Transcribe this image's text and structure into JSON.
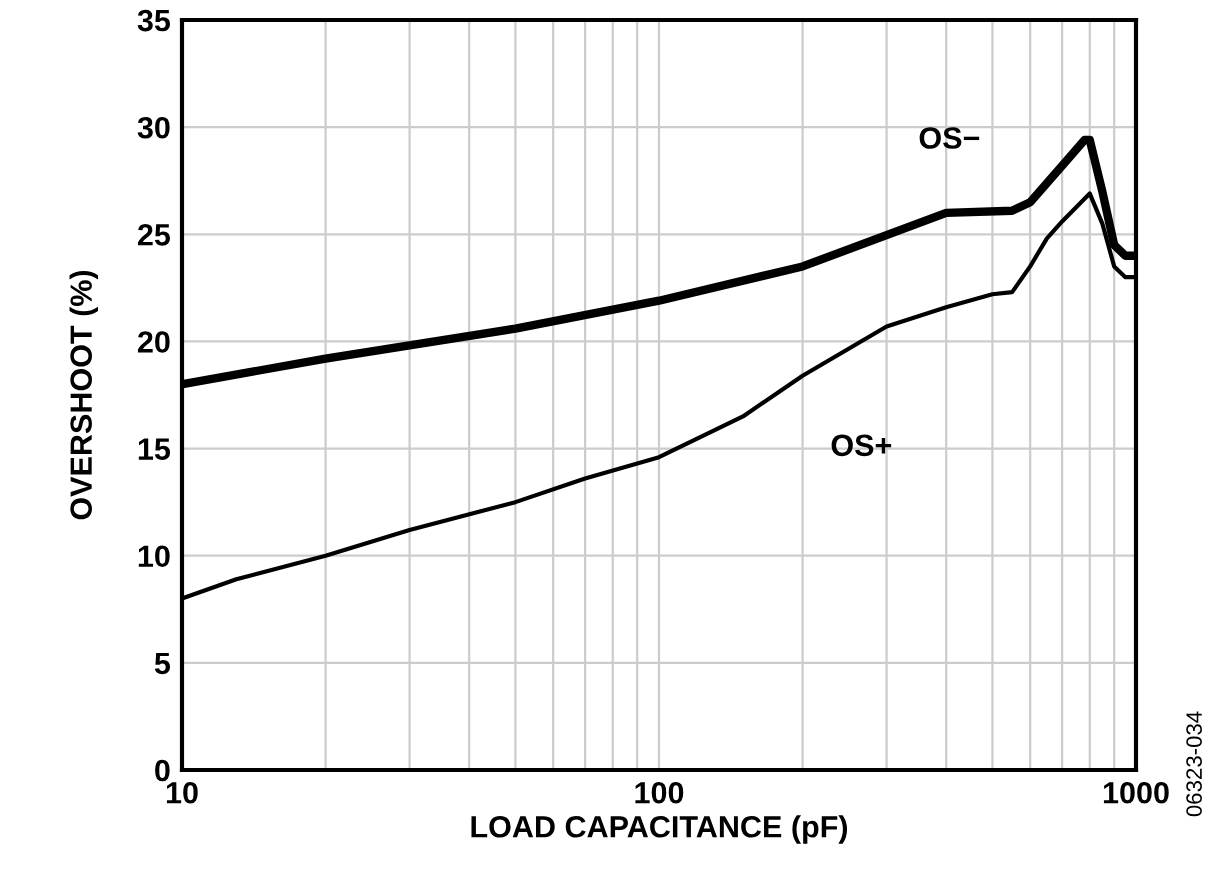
{
  "chart_data": {
    "type": "line",
    "xlabel": "LOAD CAPACITANCE (pF)",
    "ylabel": "OVERSHOOT (%)",
    "log": "x",
    "xlim": [
      10,
      1000
    ],
    "xticks": [
      10,
      100,
      1000
    ],
    "ylim": [
      0,
      35
    ],
    "yticks": [
      0,
      5,
      10,
      15,
      20,
      25,
      30,
      35
    ],
    "grid": true,
    "legend": false,
    "line_style": "solid",
    "annotations": [
      "06323-034"
    ],
    "series": [
      {
        "name": "OS−",
        "color": "#000000",
        "x": [
          10,
          20,
          50,
          100,
          200,
          400,
          550,
          600,
          700,
          780,
          800,
          850,
          900,
          950,
          1000
        ],
        "values": [
          18.0,
          19.2,
          20.6,
          21.9,
          23.5,
          26.0,
          26.1,
          26.5,
          28.2,
          29.4,
          29.4,
          27.0,
          24.5,
          24.0,
          24.0
        ]
      },
      {
        "name": "OS+",
        "color": "#000000",
        "x": [
          10,
          13,
          20,
          30,
          50,
          70,
          100,
          150,
          200,
          300,
          400,
          500,
          550,
          600,
          650,
          700,
          800,
          850,
          900,
          950,
          1000
        ],
        "values": [
          8.0,
          8.9,
          10.0,
          11.2,
          12.5,
          13.6,
          14.6,
          16.5,
          18.4,
          20.7,
          21.6,
          22.2,
          22.3,
          23.5,
          24.8,
          25.6,
          26.9,
          25.5,
          23.5,
          23.0,
          23.0
        ]
      }
    ]
  }
}
